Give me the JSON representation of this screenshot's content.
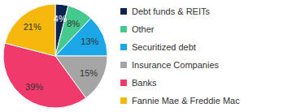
{
  "chart_data": {
    "type": "pie",
    "categories": [
      "Debt funds & REITs",
      "Other",
      "Securitized debt",
      "Insurance Companies",
      "Banks",
      "Fannie Mae & Freddie Mac"
    ],
    "values": [
      4,
      8,
      13,
      15,
      39,
      21
    ],
    "value_labels": [
      "4%",
      "8%",
      "13%",
      "15%",
      "39%",
      "21%"
    ],
    "colors": [
      "#0f2350",
      "#45c98c",
      "#1ba7e8",
      "#a5a5a5",
      "#f03a6b",
      "#f6b80c"
    ],
    "data_labels": true,
    "legend": "right"
  }
}
